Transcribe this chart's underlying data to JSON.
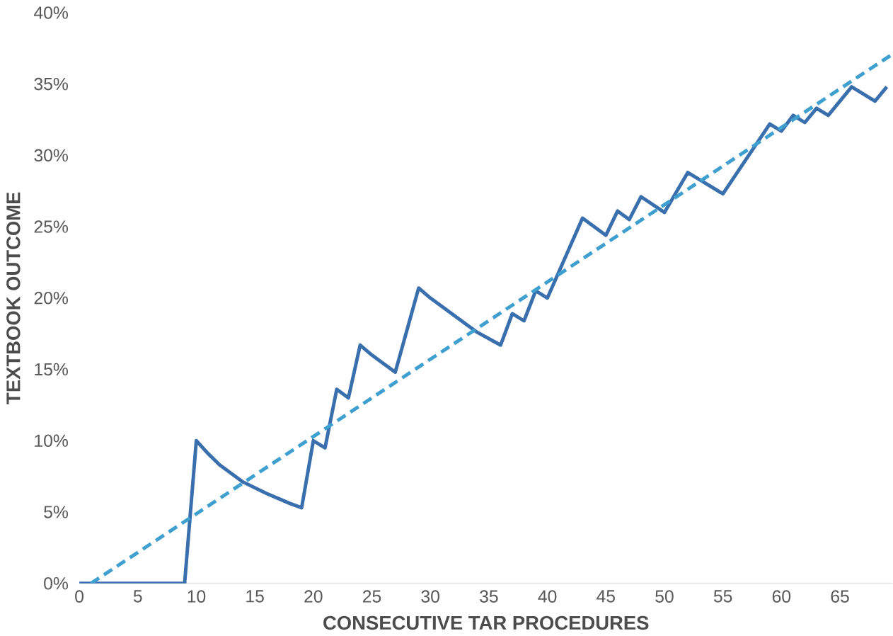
{
  "chart_data": {
    "type": "line",
    "xlabel": "CONSECUTIVE TAR PROCEDURES",
    "ylabel": "TEXTBOOK OUTCOME",
    "xlim": [
      0,
      69.5
    ],
    "xticks": [
      0,
      5,
      10,
      15,
      20,
      25,
      30,
      35,
      40,
      45,
      50,
      55,
      60,
      65
    ],
    "ylim": [
      0,
      40
    ],
    "yticks": [
      {
        "value": 0,
        "label": "0%"
      },
      {
        "value": 5,
        "label": "5%"
      },
      {
        "value": 10,
        "label": "10%"
      },
      {
        "value": 15,
        "label": "15%"
      },
      {
        "value": 20,
        "label": "20%"
      },
      {
        "value": 25,
        "label": "25%"
      },
      {
        "value": 30,
        "label": "30%"
      },
      {
        "value": 35,
        "label": "35%"
      },
      {
        "value": 40,
        "label": "40%"
      }
    ],
    "grid": false,
    "legend": false,
    "marker": "none",
    "series": [
      {
        "color": "#3a6fae",
        "line_style": "solid",
        "x": [
          0,
          9,
          10,
          11,
          12,
          13,
          14,
          16,
          18,
          19,
          20,
          21,
          22,
          23,
          24,
          25,
          26,
          27,
          29,
          30,
          32,
          34,
          36,
          37,
          38,
          39,
          40,
          43,
          45,
          46,
          47,
          48,
          50,
          52,
          55,
          59,
          60,
          61,
          62,
          63,
          64,
          66,
          68,
          69
        ],
        "values": [
          0,
          0,
          10,
          9.1,
          8.3,
          7.7,
          7.1,
          6.3,
          5.6,
          5.3,
          10,
          9.5,
          13.6,
          13,
          16.7,
          16,
          15.4,
          14.8,
          20.7,
          20,
          18.8,
          17.6,
          16.7,
          18.9,
          18.4,
          20.5,
          20,
          25.6,
          24.4,
          26.1,
          25.5,
          27.1,
          26,
          28.8,
          27.3,
          32.2,
          31.7,
          32.8,
          32.3,
          33.3,
          32.8,
          34.8,
          33.8,
          34.8
        ]
      },
      {
        "color": "#3f9fcf",
        "line_style": "dashed",
        "x": [
          1,
          69.5
        ],
        "values": [
          0,
          37.1
        ]
      }
    ]
  }
}
